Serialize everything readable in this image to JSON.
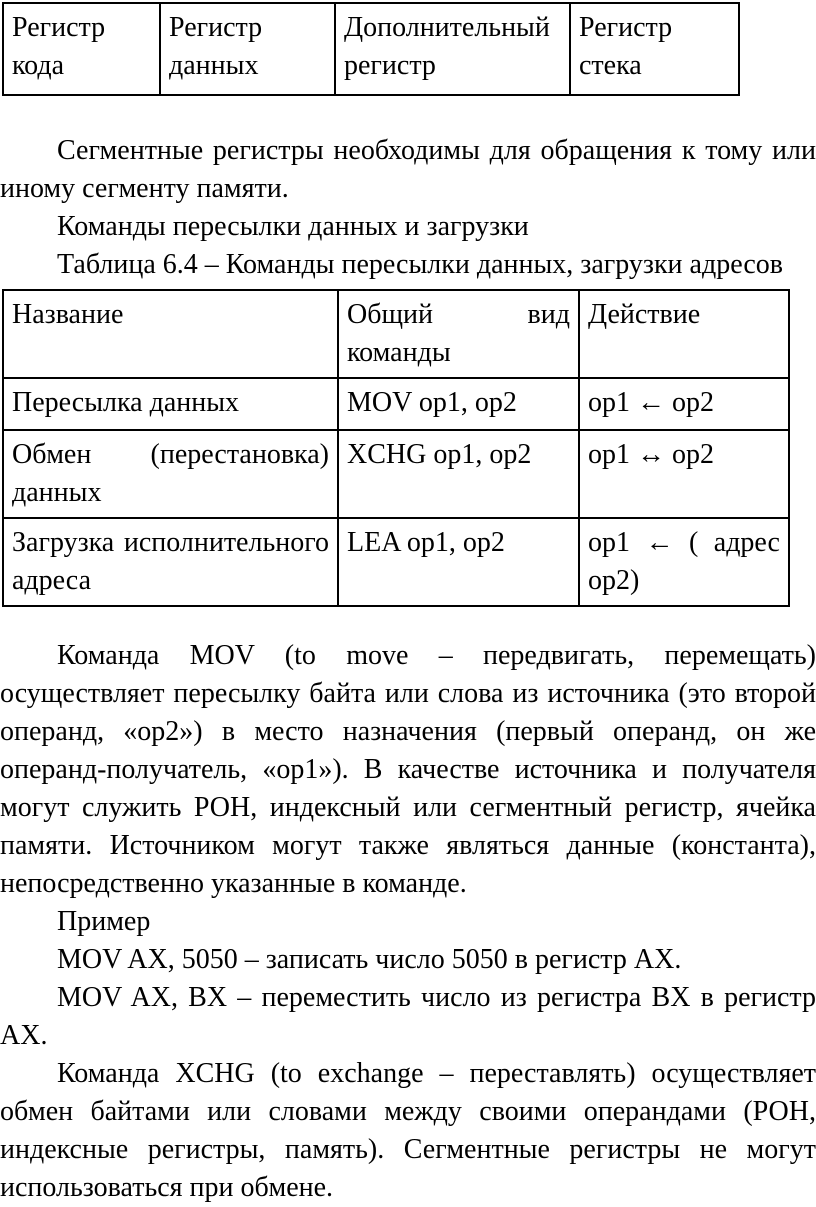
{
  "top_table": {
    "cells": [
      "Регистр кода",
      "Регистр данных",
      "Дополнительный регистр",
      "Регистр стека"
    ]
  },
  "paragraphs": {
    "segment_registers": "Сегментные регистры необходимы для обращения к тому или иному сегменту памяти.",
    "commands_heading": "Команды пересылки данных и загрузки",
    "mov_description": "Команда MOV (to move – передвигать, перемещать) осуществляет пересылку байта или слова из источника (это второй операнд, «op2») в место назначения (первый операнд, он же операнд-получатель, «op1»). В качестве источника и получателя могут служить РОН, индексный или сегментный регистр, ячейка памяти. Источником могут также являться данные (константа), непосредственно указанные в команде.",
    "example_label": "Пример",
    "example_1": "MOV AX, 5050 – записать число 5050 в регистр AX.",
    "example_2": "MOV AX, BX – переместить число из регистра BX в регистр AX.",
    "xchg_description": "Команда XCHG (to exchange – переставлять) осуществляет обмен байтами или словами между своими операндами (РОН, индексные регистры, память). Сегментные регистры не могут использоваться при обмене."
  },
  "table64": {
    "caption": "Таблица 6.4 – Команды пересылки данных, загрузки адресов",
    "headers": [
      "Название",
      "Общий вид команды",
      "Действие"
    ],
    "rows": [
      [
        "Пересылка данных",
        "MOV op1, op2",
        "op1 ← op2"
      ],
      [
        "Обмен (перестановка) данных",
        "XCHG op1, op2",
        "op1 ↔ op2"
      ],
      [
        "Загрузка исполнительного адреса",
        "LEA op1, op2",
        "op1 ← ( адрес op2)"
      ]
    ]
  }
}
